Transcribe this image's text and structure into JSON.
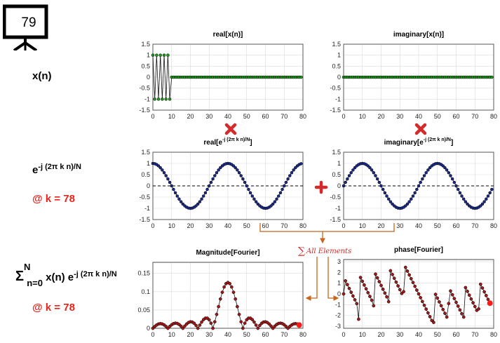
{
  "badge": {
    "number": "79"
  },
  "rows": {
    "signal": {
      "label": "x(n)"
    },
    "kernel": {
      "label_base": "e",
      "label_exp": "-j (2π k n)/N",
      "k_label": "@ k = 78"
    },
    "transform": {
      "sigma": "Σ",
      "upper": "N",
      "lower": "n=0",
      "body": " x(n) e",
      "exp": "-j (2π k n)/N",
      "k_label": "@ k = 78"
    }
  },
  "operators": {
    "multiply_color": "#d42a2a",
    "plus_color": "#d42a2a",
    "sum_label": "All Elements",
    "sum_symbol": "∑",
    "arrow_color": "#c8651b"
  },
  "chart_data": [
    {
      "type": "line",
      "id": "real_x",
      "title": "real[x(n)]",
      "xlim": [
        0,
        80
      ],
      "ylim": [
        -1.5,
        1.5
      ],
      "xticks": [
        0,
        10,
        20,
        30,
        40,
        50,
        60,
        70,
        80
      ],
      "yticks": [
        1.5,
        1,
        0.5,
        0,
        -0.5,
        -1,
        -1.5
      ],
      "grid": true,
      "marker_color": "#1f9a1f",
      "series": [
        {
          "formula": "x(n)=(-1)^n for n=0..9, 0 for n=10..79",
          "n": [
            0,
            79
          ]
        }
      ],
      "notable_values": {
        "n_0_to_9": [
          1,
          -1,
          1,
          -1,
          1,
          -1,
          1,
          -1,
          1,
          -1
        ],
        "n_10_to_79": 0
      }
    },
    {
      "type": "line",
      "id": "imag_x",
      "title": "imaginary[x(n)]",
      "xlim": [
        0,
        80
      ],
      "ylim": [
        -1.5,
        1.5
      ],
      "xticks": [
        0,
        10,
        20,
        30,
        40,
        50,
        60,
        70,
        80
      ],
      "yticks": [
        1.5,
        1,
        0.5,
        0,
        -0.5,
        -1,
        -1.5
      ],
      "grid": true,
      "marker_color": "#1f9a1f",
      "series": [
        {
          "formula": "0 for n=0..79",
          "n": [
            0,
            79
          ]
        }
      ]
    },
    {
      "type": "line",
      "id": "real_kernel",
      "title_base": "real[e",
      "title_exp": "-j (2π k n)/N",
      "title_end": "]",
      "xlim": [
        0,
        80
      ],
      "ylim": [
        -1.5,
        1.5
      ],
      "xticks": [
        0,
        10,
        20,
        30,
        40,
        50,
        60,
        70,
        80
      ],
      "yticks": [
        1.5,
        1,
        0.5,
        0,
        -0.5,
        -1,
        -1.5
      ],
      "grid": true,
      "dashed_zero": true,
      "marker_color": "#1a2a8a",
      "series": [
        {
          "formula": "cos(2π·78·n/80)",
          "n": [
            0,
            79
          ]
        }
      ]
    },
    {
      "type": "line",
      "id": "imag_kernel",
      "title_base": "imaginary[e",
      "title_exp": "-j (2π k n)/N",
      "title_end": "]",
      "xlim": [
        0,
        80
      ],
      "ylim": [
        -1.5,
        1.5
      ],
      "xticks": [
        0,
        10,
        20,
        30,
        40,
        50,
        60,
        70,
        80
      ],
      "yticks": [
        1.5,
        1,
        0.5,
        0,
        -0.5,
        -1,
        -1.5
      ],
      "grid": true,
      "dashed_zero": true,
      "marker_color": "#1a2a8a",
      "series": [
        {
          "formula": "sin(2π·2·n/80)",
          "n": [
            0,
            79
          ]
        }
      ]
    },
    {
      "type": "line",
      "id": "magnitude",
      "title": "Magnitude[Fourier]",
      "xlim": [
        0,
        80
      ],
      "ylim": [
        0,
        0.18
      ],
      "xticks": [
        0,
        10,
        20,
        30,
        40,
        50,
        60,
        70,
        80
      ],
      "yticks": [
        0.15,
        0.1,
        0.05,
        0
      ],
      "grid": true,
      "marker_color": "#a01818",
      "series": [
        {
          "formula": "|X(k)|/80 of x(n)",
          "k": [
            0,
            78
          ]
        }
      ],
      "notable_values": {
        "peak_k": 40,
        "peak_value": 0.125
      },
      "highlight": {
        "k": 78,
        "color": "#ff1a1a"
      }
    },
    {
      "type": "line",
      "id": "phase",
      "title": "phase[Fourier]",
      "xlim": [
        0,
        80
      ],
      "ylim": [
        -3.2,
        3.2
      ],
      "xticks": [
        0,
        10,
        20,
        30,
        40,
        50,
        60,
        70,
        80
      ],
      "yticks": [
        3,
        2,
        1,
        0,
        -1,
        -2,
        -3
      ],
      "grid": true,
      "marker_color": "#a01818",
      "series": [
        {
          "formula": "angle(X(k)) of x(n)",
          "k": [
            0,
            78
          ]
        }
      ],
      "highlight": {
        "k": 78,
        "color": "#ff1a1a"
      }
    }
  ]
}
